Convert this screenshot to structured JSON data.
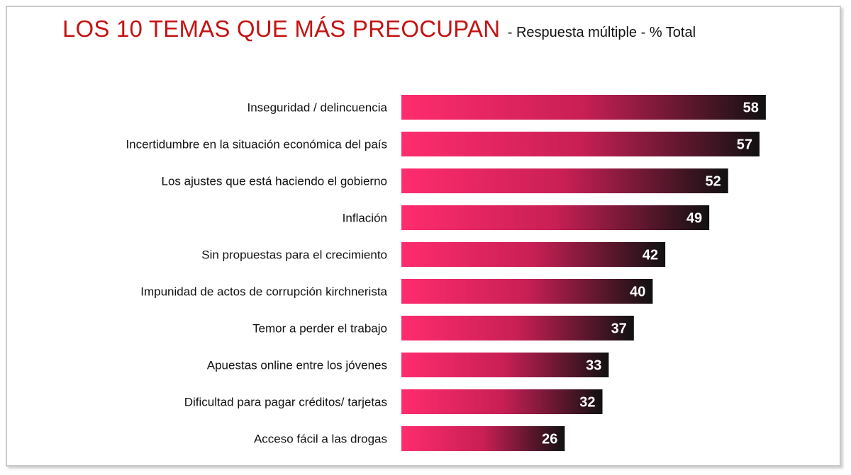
{
  "chart_data": {
    "type": "bar",
    "orientation": "horizontal",
    "title": "LOS 10 TEMAS QUE MÁS PREOCUPAN",
    "subtitle": "- Respuesta múltiple - % Total",
    "categories": [
      "Inseguridad / delincuencia",
      "Incertidumbre en la situación económica del país",
      "Los ajustes que está haciendo el gobierno",
      "Inflación",
      "Sin propuestas para el crecimiento",
      "Impunidad de actos de corrupción kirchnerista",
      "Temor a perder el trabajo",
      "Apuestas online entre los jóvenes",
      "Dificultad para pagar créditos/ tarjetas",
      "Acceso fácil a las drogas"
    ],
    "values": [
      58,
      57,
      52,
      49,
      42,
      40,
      37,
      33,
      32,
      26
    ],
    "xlabel": "",
    "ylabel": "",
    "xlim": [
      0,
      58
    ],
    "grid": false,
    "legend": "none",
    "colors": {
      "bar_start": "#ff2c6e",
      "bar_mid": "#c81f55",
      "bar_end": "#111111",
      "title": "#c41414"
    }
  }
}
